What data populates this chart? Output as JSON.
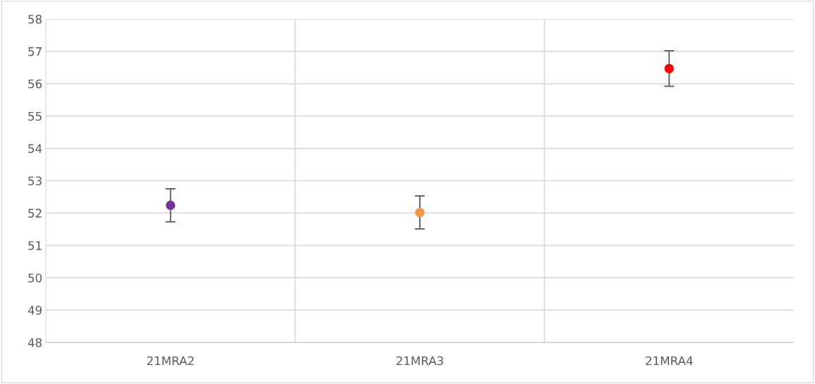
{
  "chart_data": {
    "type": "scatter",
    "categories": [
      "21MRA2",
      "21MRA3",
      "21MRA4"
    ],
    "values": [
      52.24,
      52.02,
      56.47
    ],
    "errors": [
      0.51,
      0.51,
      0.55
    ],
    "colors": [
      "#7030a0",
      "#f79646",
      "#ff0000"
    ],
    "ylim": [
      48,
      58
    ],
    "yticks": [
      48,
      49,
      50,
      51,
      52,
      53,
      54,
      55,
      56,
      57,
      58
    ],
    "grid": true,
    "marker": "circle"
  }
}
